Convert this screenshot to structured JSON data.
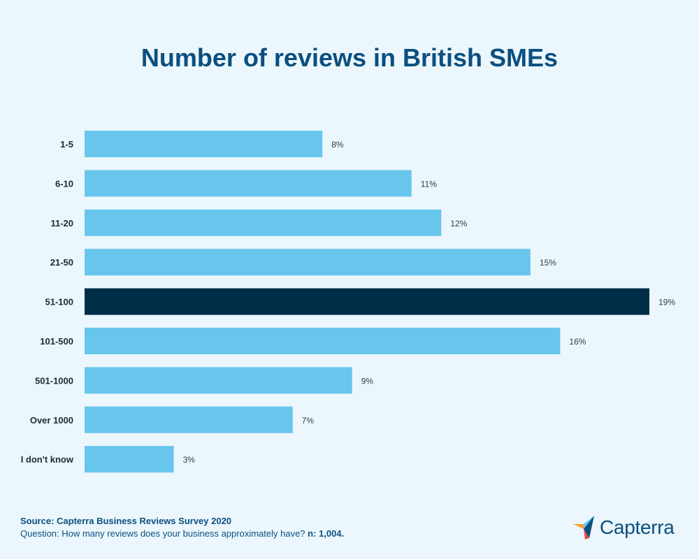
{
  "chart_data": {
    "type": "bar",
    "orientation": "horizontal",
    "title": "Number of reviews in British SMEs",
    "categories": [
      "1-5",
      "6-10",
      "11-20",
      "21-50",
      "51-100",
      "101-500",
      "501-1000",
      "Over 1000",
      "I don't know"
    ],
    "values": [
      8,
      11,
      12,
      15,
      19,
      16,
      9,
      7,
      3
    ],
    "value_labels": [
      "8%",
      "11%",
      "12%",
      "15%",
      "19%",
      "16%",
      "9%",
      "7%",
      "3%"
    ],
    "unit": "%",
    "highlight_index": 4,
    "xlim": [
      0,
      19
    ],
    "xlabel": "",
    "ylabel": "",
    "grid": false,
    "colors": {
      "bar": "#68c6ed",
      "highlight": "#002d47"
    }
  },
  "footer": {
    "source": "Source: Capterra Business Reviews Survey 2020",
    "question": "Question: How many reviews does your business approximately have?",
    "sample": "n: 1,004."
  },
  "brand": {
    "name": "Capterra"
  }
}
